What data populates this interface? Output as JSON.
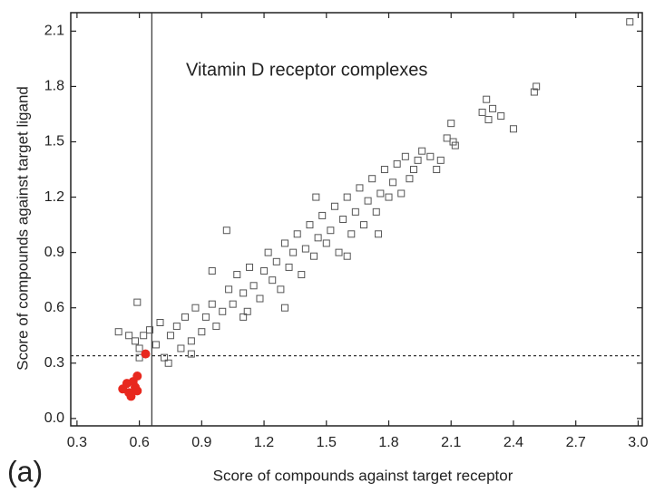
{
  "chart_data": {
    "type": "scatter",
    "annotations": {
      "title": "Vitamin D receptor complexes",
      "panel": "(a)"
    },
    "xlabel": "Score of  compounds against target receptor",
    "ylabel": "Score of  compounds against target ligand",
    "xlim": [
      0.27,
      3.02
    ],
    "ylim": [
      -0.04,
      2.2
    ],
    "xticks": [
      0.3,
      0.6,
      0.9,
      1.2,
      1.5,
      1.8,
      2.1,
      2.4,
      2.7,
      {
        "value": 3,
        "label": "3.0"
      }
    ],
    "yticks": [
      {
        "value": 0,
        "label": "0.0"
      },
      0.3,
      0.6,
      0.9,
      1.2,
      1.5,
      1.8,
      2.1
    ],
    "reference_lines": {
      "x": 0.66,
      "y": 0.34
    },
    "series": [
      {
        "color": "#555555",
        "marker": "square",
        "x": [
          0.5,
          0.55,
          0.58,
          0.59,
          0.6,
          0.6,
          0.62,
          0.65,
          0.68,
          0.7,
          0.72,
          0.74,
          0.75,
          0.78,
          0.8,
          0.82,
          0.85,
          0.87,
          0.9,
          0.92,
          0.95,
          0.97,
          1.0,
          1.02,
          1.03,
          1.05,
          1.07,
          1.1,
          1.12,
          1.13,
          1.15,
          1.18,
          1.2,
          1.22,
          1.24,
          1.26,
          1.28,
          1.3,
          1.32,
          1.34,
          1.36,
          1.38,
          1.4,
          1.42,
          1.44,
          1.46,
          1.48,
          1.5,
          1.52,
          1.54,
          1.56,
          1.58,
          1.6,
          1.62,
          1.64,
          1.66,
          1.68,
          1.7,
          1.72,
          1.74,
          1.76,
          1.78,
          1.8,
          1.82,
          1.84,
          1.86,
          1.88,
          1.9,
          1.92,
          1.94,
          1.96,
          2.0,
          2.03,
          2.05,
          2.08,
          2.1,
          2.11,
          2.12,
          2.25,
          2.27,
          2.28,
          2.3,
          2.34,
          2.4,
          2.5,
          2.51,
          2.96,
          1.6,
          1.3,
          0.95,
          1.45,
          1.75,
          1.1,
          0.85
        ],
        "values": [
          0.47,
          0.45,
          0.42,
          0.63,
          0.38,
          0.33,
          0.45,
          0.48,
          0.4,
          0.52,
          0.33,
          0.3,
          0.45,
          0.5,
          0.38,
          0.55,
          0.42,
          0.6,
          0.47,
          0.55,
          0.62,
          0.5,
          0.58,
          1.02,
          0.7,
          0.62,
          0.78,
          0.68,
          0.58,
          0.82,
          0.72,
          0.65,
          0.8,
          0.9,
          0.75,
          0.85,
          0.7,
          0.95,
          0.82,
          0.9,
          1.0,
          0.78,
          0.92,
          1.05,
          0.88,
          0.98,
          1.1,
          0.95,
          1.02,
          1.15,
          0.9,
          1.08,
          1.2,
          1.0,
          1.12,
          1.25,
          1.05,
          1.18,
          1.3,
          1.12,
          1.22,
          1.35,
          1.2,
          1.28,
          1.38,
          1.22,
          1.42,
          1.3,
          1.35,
          1.4,
          1.45,
          1.42,
          1.35,
          1.4,
          1.52,
          1.6,
          1.5,
          1.48,
          1.66,
          1.73,
          1.62,
          1.68,
          1.64,
          1.57,
          1.77,
          1.8,
          2.15,
          0.88,
          0.6,
          0.8,
          1.2,
          1.0,
          0.55,
          0.35
        ]
      },
      {
        "color": "#e8281e",
        "marker": "circle",
        "x": [
          0.52,
          0.54,
          0.55,
          0.56,
          0.57,
          0.58,
          0.59,
          0.59,
          0.63
        ],
        "values": [
          0.16,
          0.19,
          0.14,
          0.12,
          0.2,
          0.17,
          0.15,
          0.23,
          0.35
        ]
      }
    ]
  }
}
